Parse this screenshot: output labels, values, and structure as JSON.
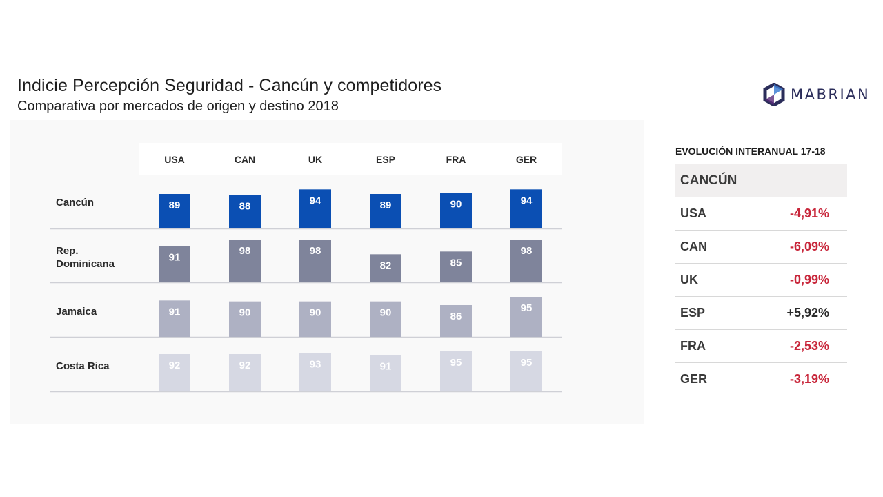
{
  "header": {
    "title": "Indicie Percepción Seguridad - Cancún y competidores",
    "subtitle": "Comparativa por mercados de origen y destino 2018"
  },
  "logo": {
    "text": "MABRIAN",
    "icon": "hexagon-logo-icon",
    "color": "#2b2d5a"
  },
  "chart_data": {
    "type": "bar",
    "categories": [
      "USA",
      "CAN",
      "UK",
      "ESP",
      "FRA",
      "GER"
    ],
    "series": [
      {
        "name": "Cancún",
        "values": [
          89,
          88,
          94,
          89,
          90,
          94
        ],
        "color": "#0b4fb3",
        "label_color": "#ffffff"
      },
      {
        "name": "Rep.\nDominicana",
        "values": [
          91,
          98,
          98,
          82,
          85,
          98
        ],
        "color": "#7f849b",
        "label_color": "#ffffff"
      },
      {
        "name": "Jamaica",
        "values": [
          91,
          90,
          90,
          90,
          86,
          95
        ],
        "color": "#aeb1c3",
        "label_color": "#ffffff"
      },
      {
        "name": "Costa Rica",
        "values": [
          92,
          92,
          93,
          91,
          95,
          95
        ],
        "color": "#d6d8e3",
        "label_color": "#ffffff"
      }
    ],
    "title": "",
    "xlabel": "",
    "ylabel": "",
    "ylim": [
      80,
      98
    ],
    "grid": false,
    "legend": "left"
  },
  "evolution": {
    "title": "EVOLUCIÓN INTERANUAL 17-18",
    "destination": "CANCÚN",
    "rows": [
      {
        "market": "USA",
        "value": "-4,91%",
        "color": "#c8263a"
      },
      {
        "market": "CAN",
        "value": "-6,09%",
        "color": "#c8263a"
      },
      {
        "market": "UK",
        "value": "-0,99%",
        "color": "#c8263a"
      },
      {
        "market": "ESP",
        "value": "+5,92%",
        "color": "#2a2a2a"
      },
      {
        "market": "FRA",
        "value": "-2,53%",
        "color": "#c8263a"
      },
      {
        "market": "GER",
        "value": "-3,19%",
        "color": "#c8263a"
      }
    ]
  }
}
